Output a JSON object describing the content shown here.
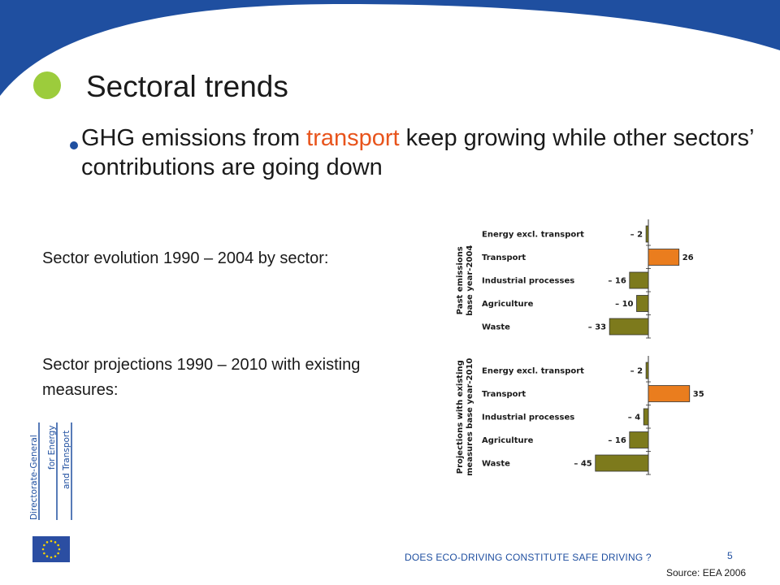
{
  "slide": {
    "title": "Sectoral trends",
    "bullet": {
      "before": "GHG emissions from ",
      "highlight": "transport",
      "after": " keep growing while other sectors’ contributions are going down"
    },
    "label_past": "Sector evolution 1990 – 2004 by sector:",
    "label_proj": "Sector projections 1990 – 2010 with existing measures:",
    "footer": "DOES ECO-DRIVING  CONSTITUTE  SAFE DRIVING ?",
    "page_number": "5",
    "source": "Source: EEA 2006",
    "logo_text": [
      "Directorate-General",
      "for Energy",
      "and Transport"
    ],
    "colors": {
      "accent_green": "#9ccc3c",
      "brand_blue": "#1f4fa0",
      "highlight_orange": "#e8541c",
      "bar_olive": "#7d7a1c",
      "bar_orange": "#ea7d1e"
    }
  },
  "chart_data": {
    "type": "bar",
    "orientation": "horizontal",
    "groups": [
      {
        "name": "Past emissions base year-2004",
        "categories": [
          "Energy excl. transport",
          "Transport",
          "Industrial processes",
          "Agriculture",
          "Waste"
        ],
        "values": [
          -2,
          26,
          -16,
          -10,
          -33
        ],
        "value_labels": [
          "– 2",
          "26",
          "– 16",
          "– 10",
          "– 33"
        ]
      },
      {
        "name": "Projections with existing measures base year-2010",
        "categories": [
          "Energy excl. transport",
          "Transport",
          "Industrial processes",
          "Agriculture",
          "Waste"
        ],
        "values": [
          -2,
          35,
          -4,
          -16,
          -45
        ],
        "value_labels": [
          "– 2",
          "35",
          "– 4",
          "– 16",
          "– 45"
        ]
      }
    ],
    "xlim": [
      -50,
      50
    ]
  }
}
